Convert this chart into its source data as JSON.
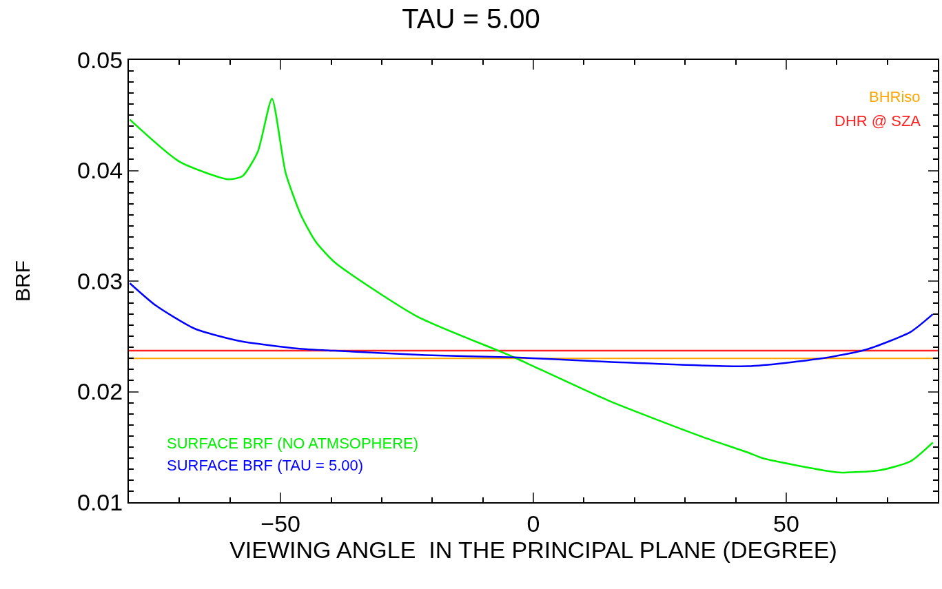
{
  "chart_data": {
    "type": "line",
    "title": "TAU = 5.00",
    "xlabel": "VIEWING ANGLE  IN THE PRINCIPAL PLANE (DEGREE)",
    "ylabel": "BRF",
    "xlim": [
      -80,
      80
    ],
    "xticks": [
      -50,
      0,
      50
    ],
    "ylim": [
      0.01,
      0.05
    ],
    "yticks": [
      0.01,
      0.02,
      0.03,
      0.04,
      0.05
    ],
    "marker": "none",
    "line_style": "solid",
    "series": [
      {
        "name": "SURFACE BRF (NO ATMSOPHERE)",
        "color": "#00ee00",
        "x": [
          -79.8,
          -70,
          -60.3,
          -57.5,
          -54.5,
          -51.7,
          -49,
          -46,
          -43.1,
          -39.3,
          -23,
          -6.9,
          -3.8,
          14.8,
          33.5,
          42.4,
          45.2,
          60.4,
          68.6,
          74.6,
          79
        ],
        "values": [
          0.0446,
          0.0408,
          0.0392,
          0.0395,
          0.0417,
          0.0465,
          0.0398,
          0.036,
          0.0336,
          0.0317,
          0.0268,
          0.0237,
          0.0231,
          0.0192,
          0.0159,
          0.0145,
          0.014,
          0.0127,
          0.0129,
          0.0137,
          0.0154
        ]
      },
      {
        "name": "SURFACE BRF (TAU = 5.00)",
        "color": "#0000ff",
        "x": [
          -79.8,
          -74.7,
          -67,
          -58.3,
          -46.6,
          -39.3,
          -21.3,
          -3.8,
          14.8,
          42.4,
          57,
          65.8,
          74.6,
          79
        ],
        "values": [
          0.0298,
          0.0278,
          0.0257,
          0.0246,
          0.0239,
          0.0237,
          0.0233,
          0.0231,
          0.0227,
          0.0223,
          0.023,
          0.0238,
          0.0254,
          0.027
        ]
      }
    ],
    "ref_lines": [
      {
        "axis": "y",
        "value": 0.023,
        "label": "BHRiso",
        "color": "#ffa500"
      },
      {
        "axis": "y",
        "value": 0.0237,
        "label": "DHR @ SZA",
        "color": "#ff2020"
      }
    ]
  }
}
